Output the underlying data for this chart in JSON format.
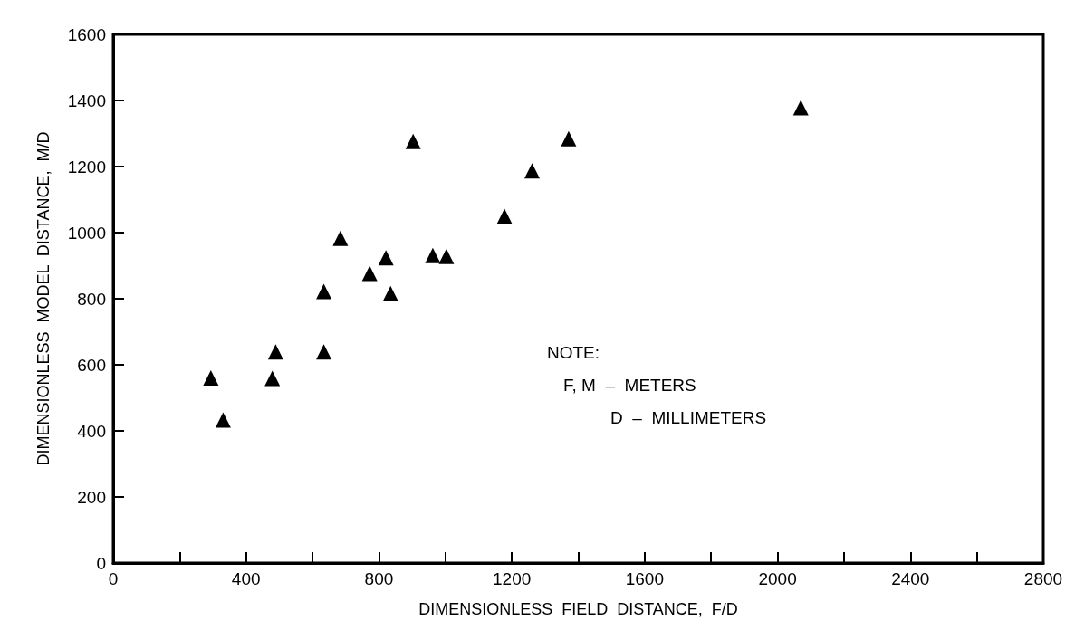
{
  "chart_data": {
    "type": "scatter",
    "xlabel": "DIMENSIONLESS  FIELD  DISTANCE,  F/D",
    "ylabel": "DIMENSIONLESS  MODEL  DISTANCE,  M/D",
    "x": [
      294,
      331,
      479,
      489,
      634,
      634,
      684,
      772,
      821,
      835,
      903,
      962,
      1003,
      1178,
      1261,
      1371,
      2070
    ],
    "series": [
      {
        "color": "#000000",
        "values": [
          560,
          433,
          559,
          639,
          639,
          822,
          983,
          877,
          924,
          816,
          1276,
          931,
          928,
          1049,
          1187,
          1284,
          1378
        ]
      }
    ],
    "xlim": [
      0,
      2800
    ],
    "xticks": [
      0,
      {
        "value": 200,
        "label": null
      },
      400,
      {
        "value": 600,
        "label": null
      },
      800,
      {
        "value": 1000,
        "label": null
      },
      1200,
      {
        "value": 1400,
        "label": null
      },
      1600,
      {
        "value": 1800,
        "label": null
      },
      2000,
      {
        "value": 2200,
        "label": null
      },
      2400,
      {
        "value": 2600,
        "label": null
      },
      2800
    ],
    "ylim": [
      0,
      1600
    ],
    "yticks": [
      0,
      200,
      400,
      600,
      800,
      1000,
      1200,
      1400,
      1600
    ],
    "annotations": [
      "NOTE:",
      "F, M  –  METERS",
      "D  –  MILLIMETERS"
    ],
    "marker": "triangle",
    "grid": false
  }
}
